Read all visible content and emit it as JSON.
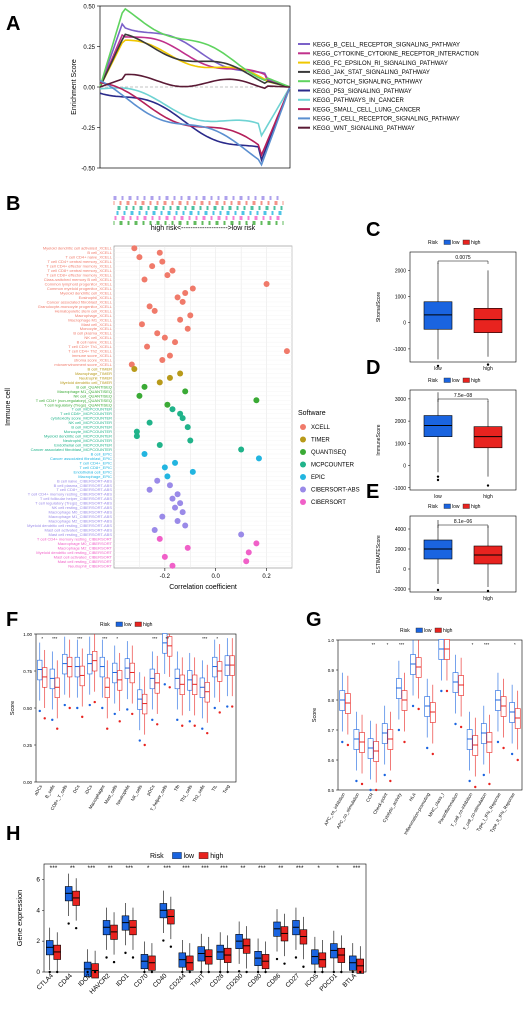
{
  "panels": {
    "A": "A",
    "B": "B",
    "C": "C",
    "D": "D",
    "E": "E",
    "F": "F",
    "G": "G",
    "H": "H"
  },
  "chart_data": [
    {
      "id": "A",
      "type": "line",
      "ylabel": "Enrichment Score",
      "yticks": [
        "0.50",
        "0.25",
        "0.00",
        "-0.25",
        "-0.50"
      ],
      "ylim": [
        -0.5,
        0.5
      ],
      "series": [
        {
          "name": "KEGG_B_CELL_RECEPTOR_SIGNALING_PATHWAY",
          "color": "#7b61c8",
          "peak": 0.4
        },
        {
          "name": "KEGG_CYTOKINE_CYTOKINE_RECEPTOR_INTERACTION",
          "color": "#c0318c",
          "peak": 0.33
        },
        {
          "name": "KEGG_FC_EPSILON_RI_SIGNALING_PATHWAY",
          "color": "#f0c800",
          "peak": 0.28
        },
        {
          "name": "KEGG_JAK_STAT_SIGNALING_PATHWAY",
          "color": "#3a3a3a",
          "peak": 0.3
        },
        {
          "name": "KEGG_NOTCH_SIGNALING_PATHWAY",
          "color": "#5fd35f",
          "peak": 0.47
        },
        {
          "name": "KEGG_P53_SIGNALING_PATHWAY",
          "color": "#2a2a8a",
          "peak": -0.45
        },
        {
          "name": "KEGG_PATHWAYS_IN_CANCER",
          "color": "#6fd3d3",
          "peak": -0.3
        },
        {
          "name": "KEGG_SMALL_CELL_LUNG_CANCER",
          "color": "#b4205a",
          "peak": -0.42
        },
        {
          "name": "KEGG_T_CELL_RECEPTOR_SIGNALING_PATHWAY",
          "color": "#5b8fd0",
          "peak": -0.48
        },
        {
          "name": "KEGG_WNT_SIGNALING_PATHWAY",
          "color": "#5a1a35",
          "peak": 0.05
        }
      ]
    },
    {
      "id": "B",
      "type": "scatter",
      "risk_label": "high risk<-------------------->low risk",
      "xlabel": "Correlation coefficient",
      "ylabel": "Immune cell",
      "xticks": [
        "-0.2",
        "0.0",
        "0.2"
      ],
      "xlim": [
        -0.4,
        0.3
      ],
      "legend_title": "Software",
      "legend": [
        {
          "name": "XCELL",
          "color": "#f07a6a"
        },
        {
          "name": "TIMER",
          "color": "#b89a1a"
        },
        {
          "name": "QUANTISEQ",
          "color": "#3aaa35"
        },
        {
          "name": "MCPCOUNTER",
          "color": "#20b38a"
        },
        {
          "name": "EPIC",
          "color": "#22b5e0"
        },
        {
          "name": "CIBERSORT-ABS",
          "color": "#9a8ae8"
        },
        {
          "name": "CIBERSORT",
          "color": "#f060c8"
        }
      ],
      "points": [
        {
          "label": "Myeloid dendritic cell activated_XCELL",
          "x": -0.32,
          "s": 0
        },
        {
          "label": "B cell_XCELL",
          "x": -0.22,
          "s": 0
        },
        {
          "label": "T cell CD4+ naive_XCELL",
          "x": -0.3,
          "s": 0
        },
        {
          "label": "T cell CD4+ central memory_XCELL",
          "x": -0.21,
          "s": 0
        },
        {
          "label": "T cell CD4+ effector memory_XCELL",
          "x": -0.25,
          "s": 0
        },
        {
          "label": "T cell CD8+ central memory_XCELL",
          "x": -0.17,
          "s": 0
        },
        {
          "label": "T cell CD8+ effector memory_XCELL",
          "x": -0.19,
          "s": 0
        },
        {
          "label": "Class-switched memory B cell_XCELL",
          "x": -0.28,
          "s": 0
        },
        {
          "label": "Common lymphoid progenitor_XCELL",
          "x": 0.2,
          "s": 0
        },
        {
          "label": "Common myeloid progenitor_XCELL",
          "x": -0.09,
          "s": 0
        },
        {
          "label": "Myeloid dendritic cell_XCELL",
          "x": -0.12,
          "s": 0
        },
        {
          "label": "Eosinophil_XCELL",
          "x": -0.15,
          "s": 0
        },
        {
          "label": "Cancer associated fibroblast_XCELL",
          "x": -0.13,
          "s": 0
        },
        {
          "label": "Granulocyte-monocyte progenitor_XCELL",
          "x": -0.26,
          "s": 0
        },
        {
          "label": "Hematopoietic stem cell_XCELL",
          "x": -0.24,
          "s": 0
        },
        {
          "label": "Macrophage_XCELL",
          "x": -0.1,
          "s": 0
        },
        {
          "label": "Macrophage M1_XCELL",
          "x": -0.14,
          "s": 0
        },
        {
          "label": "Mast cell_XCELL",
          "x": -0.29,
          "s": 0
        },
        {
          "label": "Monocyte_XCELL",
          "x": -0.11,
          "s": 0
        },
        {
          "label": "B cell plasma_XCELL",
          "x": -0.23,
          "s": 0
        },
        {
          "label": "NK cell_XCELL",
          "x": -0.2,
          "s": 0
        },
        {
          "label": "B cell naive_XCELL",
          "x": -0.16,
          "s": 0
        },
        {
          "label": "T cell CD4+ Th1_XCELL",
          "x": -0.27,
          "s": 0
        },
        {
          "label": "T cell CD4+ Th2_XCELL",
          "x": 0.28,
          "s": 0
        },
        {
          "label": "immune score_XCELL",
          "x": -0.18,
          "s": 0
        },
        {
          "label": "stroma score_XCELL",
          "x": -0.21,
          "s": 0
        },
        {
          "label": "microenvironment score_XCELL",
          "x": -0.33,
          "s": 0
        },
        {
          "label": "B cell_TIMER",
          "x": -0.32,
          "s": 1
        },
        {
          "label": "Macrophage_TIMER",
          "x": -0.14,
          "s": 1
        },
        {
          "label": "Neutrophil_TIMER",
          "x": -0.18,
          "s": 1
        },
        {
          "label": "Myeloid dendritic cell_TIMER",
          "x": -0.22,
          "s": 1
        },
        {
          "label": "B cell_QUANTISEQ",
          "x": -0.28,
          "s": 2
        },
        {
          "label": "Macrophage M1_QUANTISEQ",
          "x": -0.12,
          "s": 2
        },
        {
          "label": "NK cell_QUANTISEQ",
          "x": -0.3,
          "s": 2
        },
        {
          "label": "T cell CD4+ (non-regulatory)_QUANTISEQ",
          "x": 0.16,
          "s": 2
        },
        {
          "label": "T cell regulatory (Tregs)_QUANTISEQ",
          "x": -0.19,
          "s": 2
        },
        {
          "label": "T cell_MCPCOUNTER",
          "x": -0.17,
          "s": 3
        },
        {
          "label": "T cell CD8+_MCPCOUNTER",
          "x": -0.14,
          "s": 3
        },
        {
          "label": "cytotoxicity score_MCPCOUNTER",
          "x": -0.13,
          "s": 3
        },
        {
          "label": "NK cell_MCPCOUNTER",
          "x": -0.26,
          "s": 3
        },
        {
          "label": "B cell_MCPCOUNTER",
          "x": -0.11,
          "s": 3
        },
        {
          "label": "Monocyte_MCPCOUNTER",
          "x": -0.31,
          "s": 3
        },
        {
          "label": "Myeloid dendritic cell_MCPCOUNTER",
          "x": -0.31,
          "s": 3
        },
        {
          "label": "Neutrophil_MCPCOUNTER",
          "x": -0.1,
          "s": 3
        },
        {
          "label": "Endothelial cell_MCPCOUNTER",
          "x": -0.22,
          "s": 3
        },
        {
          "label": "Cancer associated fibroblast_MCPCOUNTER",
          "x": 0.1,
          "s": 3
        },
        {
          "label": "B cell_EPIC",
          "x": -0.28,
          "s": 4
        },
        {
          "label": "Cancer associated fibroblast_EPIC",
          "x": 0.17,
          "s": 4
        },
        {
          "label": "T cell CD4+_EPIC",
          "x": -0.16,
          "s": 4
        },
        {
          "label": "T cell CD8+_EPIC",
          "x": -0.2,
          "s": 4
        },
        {
          "label": "Endothelial cell_EPIC",
          "x": -0.09,
          "s": 4
        },
        {
          "label": "Macrophage_EPIC",
          "x": -0.19,
          "s": 4
        },
        {
          "label": "B cell naive_CIBERSORT-ABS",
          "x": -0.23,
          "s": 5
        },
        {
          "label": "B cell plasma_CIBERSORT-ABS",
          "x": -0.18,
          "s": 5
        },
        {
          "label": "T cell CD8+_CIBERSORT-ABS",
          "x": -0.26,
          "s": 5
        },
        {
          "label": "T cell CD4+ memory resting_CIBERSORT-ABS",
          "x": -0.15,
          "s": 5
        },
        {
          "label": "T cell follicular helper_CIBERSORT-ABS",
          "x": -0.17,
          "s": 5
        },
        {
          "label": "T cell regulatory (Tregs)_CIBERSORT-ABS",
          "x": -0.14,
          "s": 5
        },
        {
          "label": "NK cell resting_CIBERSORT-ABS",
          "x": -0.16,
          "s": 5
        },
        {
          "label": "Macrophage M0_CIBERSORT-ABS",
          "x": -0.13,
          "s": 5
        },
        {
          "label": "Macrophage M1_CIBERSORT-ABS",
          "x": -0.21,
          "s": 5
        },
        {
          "label": "Macrophage M2_CIBERSORT-ABS",
          "x": -0.15,
          "s": 5
        },
        {
          "label": "Myeloid dendritic cell resting_CIBERSORT-ABS",
          "x": -0.12,
          "s": 5
        },
        {
          "label": "Mast cell activated_CIBERSORT-ABS",
          "x": -0.24,
          "s": 5
        },
        {
          "label": "Mast cell resting_CIBERSORT-ABS",
          "x": 0.1,
          "s": 5
        },
        {
          "label": "T cell CD4+ memory resting_CIBERSORT",
          "x": -0.22,
          "s": 6
        },
        {
          "label": "Macrophage M0_CIBERSORT",
          "x": 0.16,
          "s": 6
        },
        {
          "label": "Macrophage M2_CIBERSORT",
          "x": -0.11,
          "s": 6
        },
        {
          "label": "Myeloid dendritic cell resting_CIBERSORT",
          "x": 0.13,
          "s": 6
        },
        {
          "label": "Mast cell activated_CIBERSORT",
          "x": -0.2,
          "s": 6
        },
        {
          "label": "Mast cell resting_CIBERSORT",
          "x": 0.12,
          "s": 6
        },
        {
          "label": "Neutrophil_CIBERSORT",
          "x": -0.17,
          "s": 6
        }
      ]
    },
    {
      "id": "C",
      "type": "box",
      "ylabel": "StromalScore",
      "pvalue": "0.0075",
      "legend_title": "Risk",
      "legend": [
        "low",
        "high"
      ],
      "categories": [
        "low",
        "high"
      ],
      "yticks": [
        "2000",
        "1000",
        "0",
        "-1000"
      ],
      "ylim": [
        -1500,
        2700
      ],
      "boxes": [
        {
          "min": -1400,
          "q1": -250,
          "median": 300,
          "q3": 800,
          "max": 2300,
          "outliers": [
            -1650
          ]
        },
        {
          "min": -1300,
          "q1": -380,
          "median": 120,
          "q3": 550,
          "max": 2000,
          "outliers": [
            -1600
          ]
        }
      ]
    },
    {
      "id": "D",
      "type": "box",
      "ylabel": "ImmuneScore",
      "pvalue": "7.5e−08",
      "legend_title": "Risk",
      "legend": [
        "low",
        "high"
      ],
      "categories": [
        "low",
        "high"
      ],
      "yticks": [
        "3000",
        "2000",
        "1000",
        "0",
        "-1000"
      ],
      "ylim": [
        -1100,
        3400
      ],
      "boxes": [
        {
          "min": -300,
          "q1": 1300,
          "median": 1800,
          "q3": 2250,
          "max": 3300,
          "outliers": [
            -500,
            -650
          ]
        },
        {
          "min": -500,
          "q1": 800,
          "median": 1300,
          "q3": 1750,
          "max": 2900,
          "outliers": [
            -900
          ]
        }
      ]
    },
    {
      "id": "E",
      "type": "box",
      "ylabel": "ESTIMATEScore",
      "pvalue": "8.1e−06",
      "legend_title": "Risk",
      "legend": [
        "low",
        "high"
      ],
      "categories": [
        "low",
        "high"
      ],
      "yticks": [
        "4000",
        "2000",
        "0",
        "-2000"
      ],
      "ylim": [
        -2300,
        5300
      ],
      "boxes": [
        {
          "min": -1500,
          "q1": 1000,
          "median": 2000,
          "q3": 2900,
          "max": 4900,
          "outliers": [
            -2100
          ]
        },
        {
          "min": -1800,
          "q1": 500,
          "median": 1400,
          "q3": 2300,
          "max": 4300,
          "outliers": [
            -2200
          ]
        }
      ]
    },
    {
      "id": "F",
      "type": "box",
      "ylabel": "Score",
      "legend_title": "Risk",
      "legend": [
        "low",
        "high"
      ],
      "yticks": [
        "1.00",
        "0.75",
        "0.50",
        "0.25",
        "0.00"
      ],
      "ylim": [
        0,
        1
      ],
      "categories": [
        "aDCs",
        "B_cells",
        "CD8+_T_cells",
        "DCs",
        "iDCs",
        "Macrophages",
        "Mast_cells",
        "Neutrophils",
        "NK_cells",
        "pDCs",
        "T_helper_cells",
        "Tfh",
        "Th1_cells",
        "Th2_cells",
        "TIL",
        "Treg"
      ],
      "sig": [
        "*",
        "***",
        "",
        "***",
        "",
        "***",
        "*",
        "",
        "",
        "***",
        "**",
        "",
        "",
        "***",
        "*",
        ""
      ],
      "pairs": [
        [
          0.76,
          0.71
        ],
        [
          0.7,
          0.64
        ],
        [
          0.8,
          0.78
        ],
        [
          0.78,
          0.72
        ],
        [
          0.8,
          0.82
        ],
        [
          0.78,
          0.64
        ],
        [
          0.74,
          0.69
        ],
        [
          0.77,
          0.74
        ],
        [
          0.56,
          0.53
        ],
        [
          0.7,
          0.67
        ],
        [
          0.94,
          0.92
        ],
        [
          0.7,
          0.66
        ],
        [
          0.69,
          0.66
        ],
        [
          0.64,
          0.61
        ],
        [
          0.78,
          0.75
        ],
        [
          0.79,
          0.79
        ]
      ]
    },
    {
      "id": "G",
      "type": "box",
      "ylabel": "Score",
      "legend_title": "Risk",
      "legend": [
        "low",
        "high"
      ],
      "yticks": [
        "1.0",
        "0.9",
        "0.8",
        "0.7",
        "0.6",
        "0.5"
      ],
      "ylim": [
        0.5,
        1.0
      ],
      "categories": [
        "APC_co_inhibition",
        "APC_co_stimulation",
        "CCR",
        "Check-point",
        "Cytolytic_activity",
        "HLA",
        "Inflammation-promoting",
        "MHC_class_I",
        "Parainflammation",
        "T_cell_co-inhibition",
        "T_cell_co-stimulation",
        "Type_I_IFN_Reponse",
        "Type_II_IFN_Reponse"
      ],
      "sig": [
        "",
        "",
        "**",
        "*",
        "***",
        "",
        "",
        "",
        "",
        "*",
        "***",
        "",
        "*"
      ],
      "pairs": [
        [
          0.8,
          0.79
        ],
        [
          0.67,
          0.66
        ],
        [
          0.64,
          0.63
        ],
        [
          0.69,
          0.67
        ],
        [
          0.84,
          0.8
        ],
        [
          0.92,
          0.91
        ],
        [
          0.78,
          0.76
        ],
        [
          0.97,
          0.97
        ],
        [
          0.86,
          0.85
        ],
        [
          0.67,
          0.65
        ],
        [
          0.69,
          0.66
        ],
        [
          0.8,
          0.78
        ],
        [
          0.76,
          0.74
        ]
      ]
    },
    {
      "id": "H",
      "type": "box",
      "ylabel": "Gene expression",
      "legend_title": "Risk",
      "legend": [
        "low",
        "high"
      ],
      "yticks": [
        "6",
        "4",
        "2",
        "0"
      ],
      "ylim": [
        0,
        7
      ],
      "categories": [
        "CTLA4",
        "CD44",
        "IDO2",
        "HAVCR2",
        "IDO1",
        "CD70",
        "CD40",
        "CD244",
        "TIGIT",
        "CD28",
        "CD200",
        "CD80",
        "CD86",
        "CD27",
        "ICOS",
        "PDCD1",
        "BTLA"
      ],
      "sig": [
        "***",
        "**",
        "***",
        "**",
        "***",
        "*",
        "***",
        "***",
        "***",
        "***",
        "**",
        "***",
        "**",
        "***",
        "*",
        "*",
        "***"
      ],
      "pairs": [
        [
          1.6,
          1.3
        ],
        [
          5.1,
          4.8
        ],
        [
          0.2,
          0.1
        ],
        [
          2.9,
          2.6
        ],
        [
          3.2,
          2.9
        ],
        [
          0.7,
          0.6
        ],
        [
          4.0,
          3.6
        ],
        [
          0.8,
          0.6
        ],
        [
          1.2,
          1.0
        ],
        [
          1.3,
          1.1
        ],
        [
          2.0,
          1.7
        ],
        [
          0.9,
          0.7
        ],
        [
          2.8,
          2.5
        ],
        [
          2.9,
          2.3
        ],
        [
          1.0,
          0.8
        ],
        [
          1.4,
          1.1
        ],
        [
          0.6,
          0.4
        ]
      ]
    }
  ]
}
